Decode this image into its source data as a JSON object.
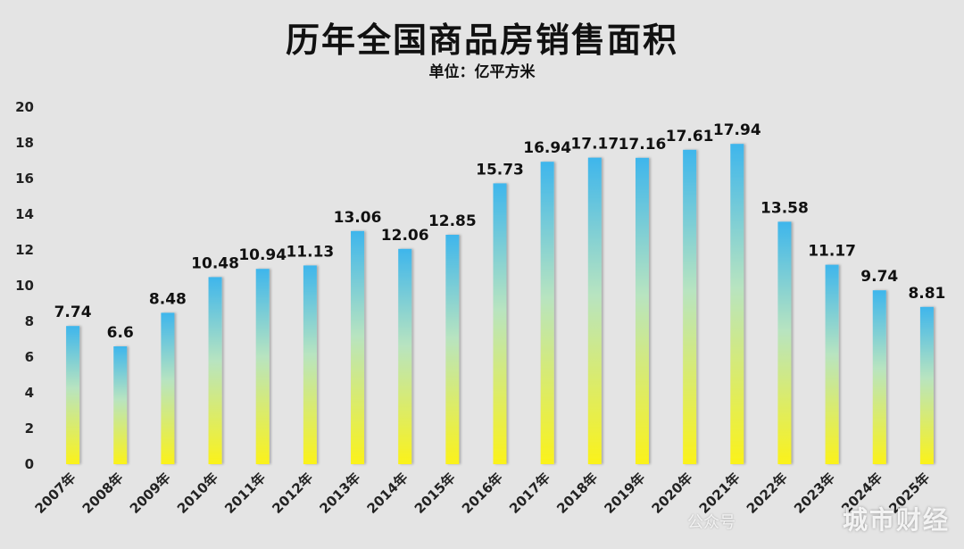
{
  "chart_data": {
    "type": "bar",
    "title": "历年全国商品房销售面积",
    "subtitle": "单位：亿平方米",
    "categories": [
      "2007年",
      "2008年",
      "2009年",
      "2010年",
      "2011年",
      "2012年",
      "2013年",
      "2014年",
      "2015年",
      "2016年",
      "2017年",
      "2018年",
      "2019年",
      "2020年",
      "2021年",
      "2022年",
      "2023年",
      "2024年",
      "2025年"
    ],
    "values": [
      7.74,
      6.6,
      8.48,
      10.48,
      10.94,
      11.13,
      13.06,
      12.06,
      12.85,
      15.73,
      16.94,
      17.17,
      17.16,
      17.61,
      17.94,
      13.58,
      11.17,
      9.74,
      8.81
    ],
    "ylim": [
      0,
      20
    ],
    "yticks": [
      0,
      2,
      4,
      6,
      8,
      10,
      12,
      14,
      16,
      18,
      20
    ],
    "grid": false,
    "bar_gradient": {
      "top": "#3eb6ec",
      "middle": "#b8e4c0",
      "bottom": "#fbf21a"
    }
  },
  "watermark": {
    "small": "公众号",
    "brand": "城市财经"
  }
}
